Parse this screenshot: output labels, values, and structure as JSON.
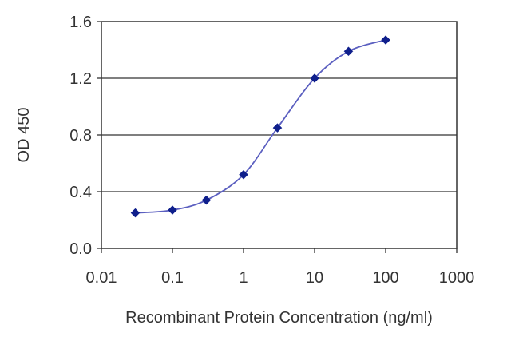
{
  "chart_data": {
    "type": "line",
    "title": "",
    "xlabel": "Recombinant Protein Concentration (ng/ml)",
    "ylabel": "OD 450",
    "x_scale": "log",
    "xlim": [
      0.01,
      1000
    ],
    "ylim": [
      0.0,
      1.6
    ],
    "x_ticks": [
      "0.01",
      "0.1",
      "1",
      "10",
      "100",
      "1000"
    ],
    "y_ticks": [
      "0.0",
      "0.4",
      "0.8",
      "1.2",
      "1.6"
    ],
    "grid": "horizontal",
    "series": [
      {
        "color": "#0f1f8c",
        "line_color": "#5b5fc0",
        "x": [
          0.03,
          0.1,
          0.3,
          1,
          3,
          10,
          30,
          100
        ],
        "y": [
          0.25,
          0.27,
          0.34,
          0.52,
          0.85,
          1.2,
          1.39,
          1.47
        ]
      }
    ]
  }
}
